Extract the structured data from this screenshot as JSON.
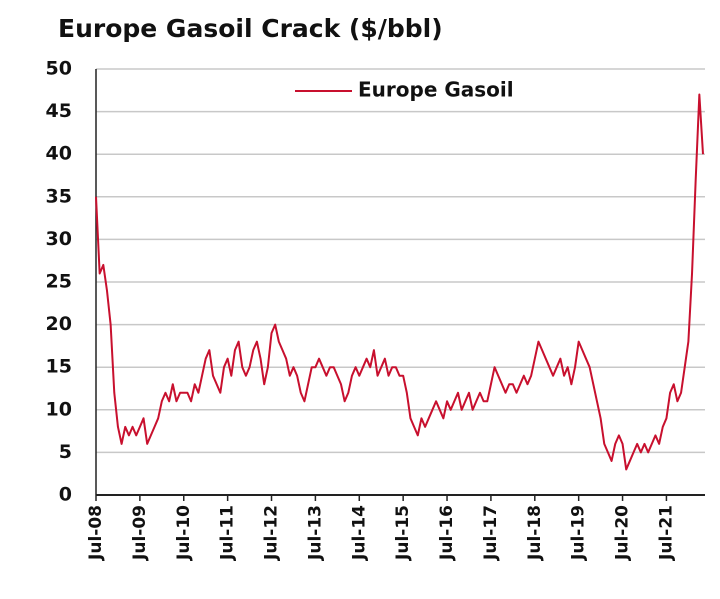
{
  "chart_data": {
    "type": "line",
    "title": "Europe Gasoil Crack ($/bbl)",
    "categories": [
      "Jul-08",
      null,
      null,
      null,
      null,
      null,
      null,
      null,
      null,
      null,
      null,
      null,
      "Jul-09",
      null,
      null,
      null,
      null,
      null,
      null,
      null,
      null,
      null,
      null,
      null,
      "Jul-10",
      null,
      null,
      null,
      null,
      null,
      null,
      null,
      null,
      null,
      null,
      null,
      "Jul-11",
      null,
      null,
      null,
      null,
      null,
      null,
      null,
      null,
      null,
      null,
      null,
      "Jul-12",
      null,
      null,
      null,
      null,
      null,
      null,
      null,
      null,
      null,
      null,
      null,
      "Jul-13",
      null,
      null,
      null,
      null,
      null,
      null,
      null,
      null,
      null,
      null,
      null,
      "Jul-14",
      null,
      null,
      null,
      null,
      null,
      null,
      null,
      null,
      null,
      null,
      null,
      "Jul-15",
      null,
      null,
      null,
      null,
      null,
      null,
      null,
      null,
      null,
      null,
      null,
      "Jul-16",
      null,
      null,
      null,
      null,
      null,
      null,
      null,
      null,
      null,
      null,
      null,
      "Jul-17",
      null,
      null,
      null,
      null,
      null,
      null,
      null,
      null,
      null,
      null,
      null,
      "Jul-18",
      null,
      null,
      null,
      null,
      null,
      null,
      null,
      null,
      null,
      null,
      null,
      "Jul-19",
      null,
      null,
      null,
      null,
      null,
      null,
      null,
      null,
      null,
      null,
      null,
      "Jul-20",
      null,
      null,
      null,
      null,
      null,
      null,
      null,
      null,
      null,
      null,
      null,
      "Jul-21",
      null,
      null,
      null,
      null,
      null,
      null,
      null,
      null,
      null,
      null
    ],
    "series": [
      {
        "name": "Europe Gasoil",
        "color": "#c8102e",
        "values": [
          35,
          26,
          27,
          24,
          20,
          12,
          8,
          6,
          8,
          7,
          8,
          7,
          8,
          9,
          6,
          7,
          8,
          9,
          11,
          12,
          11,
          13,
          11,
          12,
          12,
          12,
          11,
          13,
          12,
          14,
          16,
          17,
          14,
          13,
          12,
          15,
          16,
          14,
          17,
          18,
          15,
          14,
          15,
          17,
          18,
          16,
          13,
          15,
          19,
          20,
          18,
          17,
          16,
          14,
          15,
          14,
          12,
          11,
          13,
          15,
          15,
          16,
          15,
          14,
          15,
          15,
          14,
          13,
          11,
          12,
          14,
          15,
          14,
          15,
          16,
          15,
          17,
          14,
          15,
          16,
          14,
          15,
          15,
          14,
          14,
          12,
          9,
          8,
          7,
          9,
          8,
          9,
          10,
          11,
          10,
          9,
          11,
          10,
          11,
          12,
          10,
          11,
          12,
          10,
          11,
          12,
          11,
          11,
          13,
          15,
          14,
          13,
          12,
          13,
          13,
          12,
          13,
          14,
          13,
          14,
          16,
          18,
          17,
          16,
          15,
          14,
          15,
          16,
          14,
          15,
          13,
          15,
          18,
          17,
          16,
          15,
          13,
          11,
          9,
          6,
          5,
          4,
          6,
          7,
          6,
          3,
          4,
          5,
          6,
          5,
          6,
          5,
          6,
          7,
          6,
          8,
          9,
          12,
          13,
          11,
          12,
          15,
          18,
          26,
          37,
          47,
          40
        ]
      }
    ],
    "ylim": [
      0,
      50
    ],
    "yticks": [
      0,
      5,
      10,
      15,
      20,
      25,
      30,
      35,
      40,
      45,
      50
    ],
    "grid": true,
    "legend": "top"
  }
}
